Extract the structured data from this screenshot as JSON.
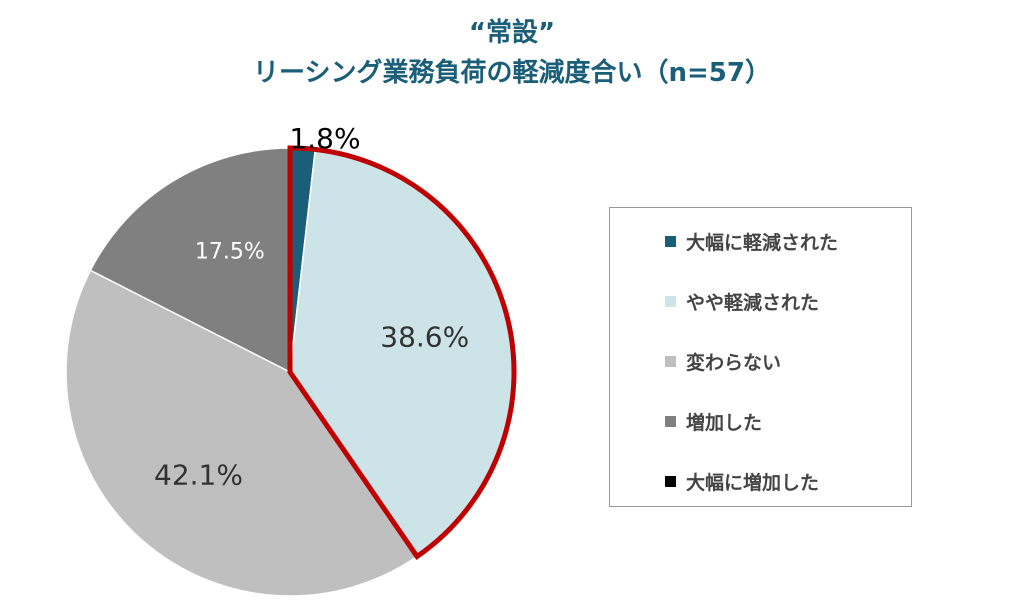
{
  "chart_data": {
    "type": "pie",
    "title": "“常設”",
    "subtitle": "リーシング業務負荷の軽減度合い（n=57）",
    "categories": [
      "大幅に軽減された",
      "やや軽減された",
      "変わらない",
      "増加した",
      "大幅に増加した"
    ],
    "values": [
      1.8,
      38.6,
      42.1,
      17.5,
      0
    ],
    "labels": [
      "1.8%",
      "38.6%",
      "42.1%",
      "17.5%",
      ""
    ],
    "colors": [
      "#1b5e78",
      "#cce3e8",
      "#bfbfbf",
      "#808080",
      "#000000"
    ],
    "highlight_color": "#c00000",
    "highlighted": [
      "大幅に軽減された",
      "やや軽減された"
    ],
    "legend": "right"
  }
}
